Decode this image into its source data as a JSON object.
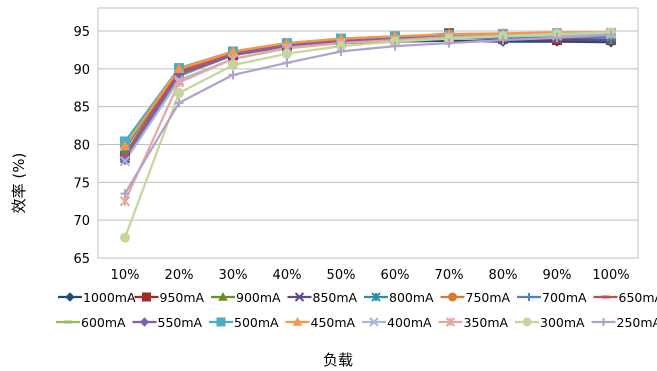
{
  "chart_data": {
    "type": "line",
    "xlabel": "负载",
    "ylabel": "效率 (%)",
    "categories": [
      "10%",
      "20%",
      "30%",
      "40%",
      "50%",
      "60%",
      "70%",
      "80%",
      "90%",
      "100%"
    ],
    "ylim": [
      65,
      97
    ],
    "yticks": [
      65,
      70,
      75,
      80,
      85,
      90,
      95
    ],
    "grid": true,
    "legend_position": "bottom",
    "series": [
      {
        "name": "1000mA",
        "color": "#1F4E79",
        "marker": "diamond",
        "values": [
          78.0,
          89.3,
          91.8,
          93.0,
          93.4,
          93.6,
          93.7,
          93.6,
          93.6,
          93.5
        ]
      },
      {
        "name": "950mA",
        "color": "#9E2A2B",
        "marker": "square",
        "values": [
          78.5,
          89.3,
          91.8,
          93.0,
          93.6,
          94.0,
          94.7,
          94.0,
          93.8,
          93.8
        ]
      },
      {
        "name": "900mA",
        "color": "#6A8E23",
        "marker": "triangle",
        "values": [
          78.8,
          89.6,
          92.0,
          93.2,
          93.6,
          94.0,
          94.3,
          94.0,
          94.0,
          93.8
        ]
      },
      {
        "name": "850mA",
        "color": "#5F4B8B",
        "marker": "x",
        "values": [
          78.2,
          89.4,
          92.0,
          93.2,
          93.8,
          94.0,
          94.1,
          93.9,
          93.9,
          93.8
        ]
      },
      {
        "name": "800mA",
        "color": "#2E8FA8",
        "marker": "xstar",
        "values": [
          79.5,
          89.8,
          92.1,
          93.3,
          93.8,
          94.0,
          94.2,
          94.3,
          94.4,
          94.3
        ]
      },
      {
        "name": "750mA",
        "color": "#D9792B",
        "marker": "circle",
        "values": [
          79.8,
          89.8,
          92.2,
          93.2,
          93.8,
          94.2,
          94.4,
          94.5,
          94.6,
          94.6
        ]
      },
      {
        "name": "700mA",
        "color": "#4F7FC5",
        "marker": "plus",
        "values": [
          78.3,
          89.5,
          91.9,
          93.1,
          93.6,
          93.8,
          94.0,
          94.1,
          94.2,
          94.1
        ]
      },
      {
        "name": "650mA",
        "color": "#C0504D",
        "marker": "dash",
        "values": [
          78.6,
          89.6,
          91.9,
          93.2,
          93.8,
          94.1,
          94.2,
          94.4,
          94.5,
          94.5
        ]
      },
      {
        "name": "600mA",
        "color": "#9BBB59",
        "marker": "dash",
        "values": [
          78.0,
          89.0,
          91.8,
          93.0,
          93.6,
          94.0,
          94.2,
          94.3,
          94.4,
          94.5
        ]
      },
      {
        "name": "550mA",
        "color": "#7E5FB5",
        "marker": "diamond",
        "values": [
          78.1,
          89.2,
          91.8,
          93.0,
          93.6,
          94.0,
          94.3,
          94.4,
          94.5,
          94.6
        ]
      },
      {
        "name": "500mA",
        "color": "#4BACC6",
        "marker": "square",
        "values": [
          80.4,
          90.1,
          92.3,
          93.4,
          94.0,
          94.3,
          94.5,
          94.6,
          94.7,
          94.7
        ]
      },
      {
        "name": "450mA",
        "color": "#F79646",
        "marker": "triangle",
        "values": [
          79.8,
          90.0,
          92.3,
          93.4,
          94.0,
          94.3,
          94.6,
          94.7,
          94.8,
          94.8
        ]
      },
      {
        "name": "400mA",
        "color": "#A5B8D8",
        "marker": "x",
        "values": [
          77.8,
          88.5,
          91.3,
          92.8,
          93.4,
          93.8,
          94.1,
          94.3,
          94.4,
          94.6
        ]
      },
      {
        "name": "350mA",
        "color": "#E6A7A0",
        "marker": "xstar",
        "values": [
          72.5,
          88.2,
          91.3,
          92.7,
          93.4,
          93.8,
          94.2,
          94.4,
          94.6,
          94.8
        ]
      },
      {
        "name": "300mA",
        "color": "#C3D69B",
        "marker": "circle",
        "values": [
          67.7,
          86.8,
          90.5,
          92.0,
          93.0,
          93.6,
          94.0,
          94.3,
          94.6,
          94.8
        ]
      },
      {
        "name": "250mA",
        "color": "#B3A2C7",
        "marker": "plus",
        "values": [
          73.5,
          85.5,
          89.2,
          90.8,
          92.3,
          93.0,
          93.4,
          93.8,
          94.1,
          94.5
        ]
      }
    ]
  }
}
